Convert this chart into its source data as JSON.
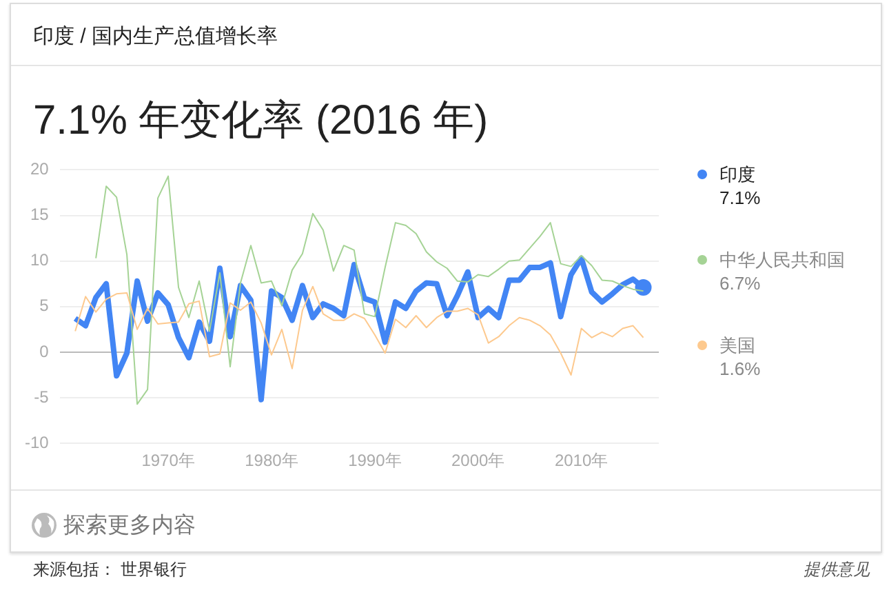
{
  "chart_data": {
    "type": "line",
    "title": "7.1% 年变化率 (2016 年)",
    "subtitle": "印度 / 国内生产总值增长率",
    "x": [
      1961,
      1962,
      1963,
      1964,
      1965,
      1966,
      1967,
      1968,
      1969,
      1970,
      1971,
      1972,
      1973,
      1974,
      1975,
      1976,
      1977,
      1978,
      1979,
      1980,
      1981,
      1982,
      1983,
      1984,
      1985,
      1986,
      1987,
      1988,
      1989,
      1990,
      1991,
      1992,
      1993,
      1994,
      1995,
      1996,
      1997,
      1998,
      1999,
      2000,
      2001,
      2002,
      2003,
      2004,
      2005,
      2006,
      2007,
      2008,
      2009,
      2010,
      2011,
      2012,
      2013,
      2014,
      2015,
      2016
    ],
    "series": [
      {
        "name": "印度",
        "color": "#4285f4",
        "values": [
          3.7,
          2.9,
          6.0,
          7.5,
          -2.6,
          -0.1,
          7.8,
          3.4,
          6.5,
          5.2,
          1.6,
          -0.6,
          3.3,
          1.2,
          9.2,
          1.7,
          7.3,
          5.7,
          -5.2,
          6.7,
          6.0,
          3.5,
          7.3,
          3.8,
          5.3,
          4.8,
          4.0,
          9.6,
          5.9,
          5.5,
          1.1,
          5.5,
          4.8,
          6.7,
          7.6,
          7.5,
          4.0,
          6.2,
          8.8,
          3.8,
          4.8,
          3.8,
          7.9,
          7.9,
          9.3,
          9.3,
          9.8,
          3.9,
          8.5,
          10.3,
          6.6,
          5.5,
          6.4,
          7.4,
          8.0,
          7.1
        ]
      },
      {
        "name": "中华人民共和国",
        "color": "#a5d395",
        "values": [
          null,
          null,
          10.3,
          18.2,
          17.0,
          10.7,
          -5.7,
          -4.1,
          16.9,
          19.3,
          7.1,
          3.8,
          7.8,
          2.3,
          8.7,
          -1.6,
          7.6,
          11.7,
          7.6,
          7.8,
          5.1,
          9.0,
          10.8,
          15.2,
          13.4,
          8.9,
          11.7,
          11.2,
          4.2,
          3.9,
          9.3,
          14.2,
          13.9,
          13.0,
          11.0,
          9.9,
          9.2,
          7.8,
          7.7,
          8.5,
          8.3,
          9.1,
          10.0,
          10.1,
          11.4,
          12.7,
          14.2,
          9.7,
          9.4,
          10.6,
          9.5,
          7.9,
          7.8,
          7.3,
          6.9,
          6.7
        ]
      },
      {
        "name": "美国",
        "color": "#fdc98e",
        "values": [
          2.3,
          6.1,
          4.4,
          5.8,
          6.4,
          6.5,
          2.5,
          4.8,
          3.1,
          3.2,
          3.3,
          5.3,
          5.6,
          -0.5,
          -0.2,
          5.4,
          4.6,
          5.5,
          3.2,
          -0.3,
          2.5,
          -1.8,
          4.6,
          7.2,
          4.2,
          3.5,
          3.5,
          4.2,
          3.7,
          1.9,
          -0.1,
          3.6,
          2.7,
          4.0,
          2.7,
          3.8,
          4.5,
          4.5,
          4.8,
          4.1,
          1.0,
          1.7,
          2.9,
          3.8,
          3.5,
          2.9,
          1.9,
          -0.1,
          -2.5,
          2.6,
          1.6,
          2.2,
          1.7,
          2.6,
          2.9,
          1.6
        ]
      }
    ],
    "xlim": [
      1959.5,
      2017.5
    ],
    "xticks": [
      {
        "value": 1970,
        "label": "1970年"
      },
      {
        "value": 1980,
        "label": "1980年"
      },
      {
        "value": 1990,
        "label": "1990年"
      },
      {
        "value": 2000,
        "label": "2000年"
      },
      {
        "value": 2010,
        "label": "2010年"
      }
    ],
    "ylim": [
      -10,
      20
    ],
    "yticks": [
      -10,
      -5,
      0,
      5,
      10,
      15,
      20
    ],
    "grid": "y",
    "legend": "right",
    "marker": "none",
    "line_style": "solid",
    "annotations": [
      "7.1%",
      "6.7%",
      "1.6%",
      "探索更多内容",
      "来源包括： 世界银行",
      "提供意见"
    ]
  }
}
